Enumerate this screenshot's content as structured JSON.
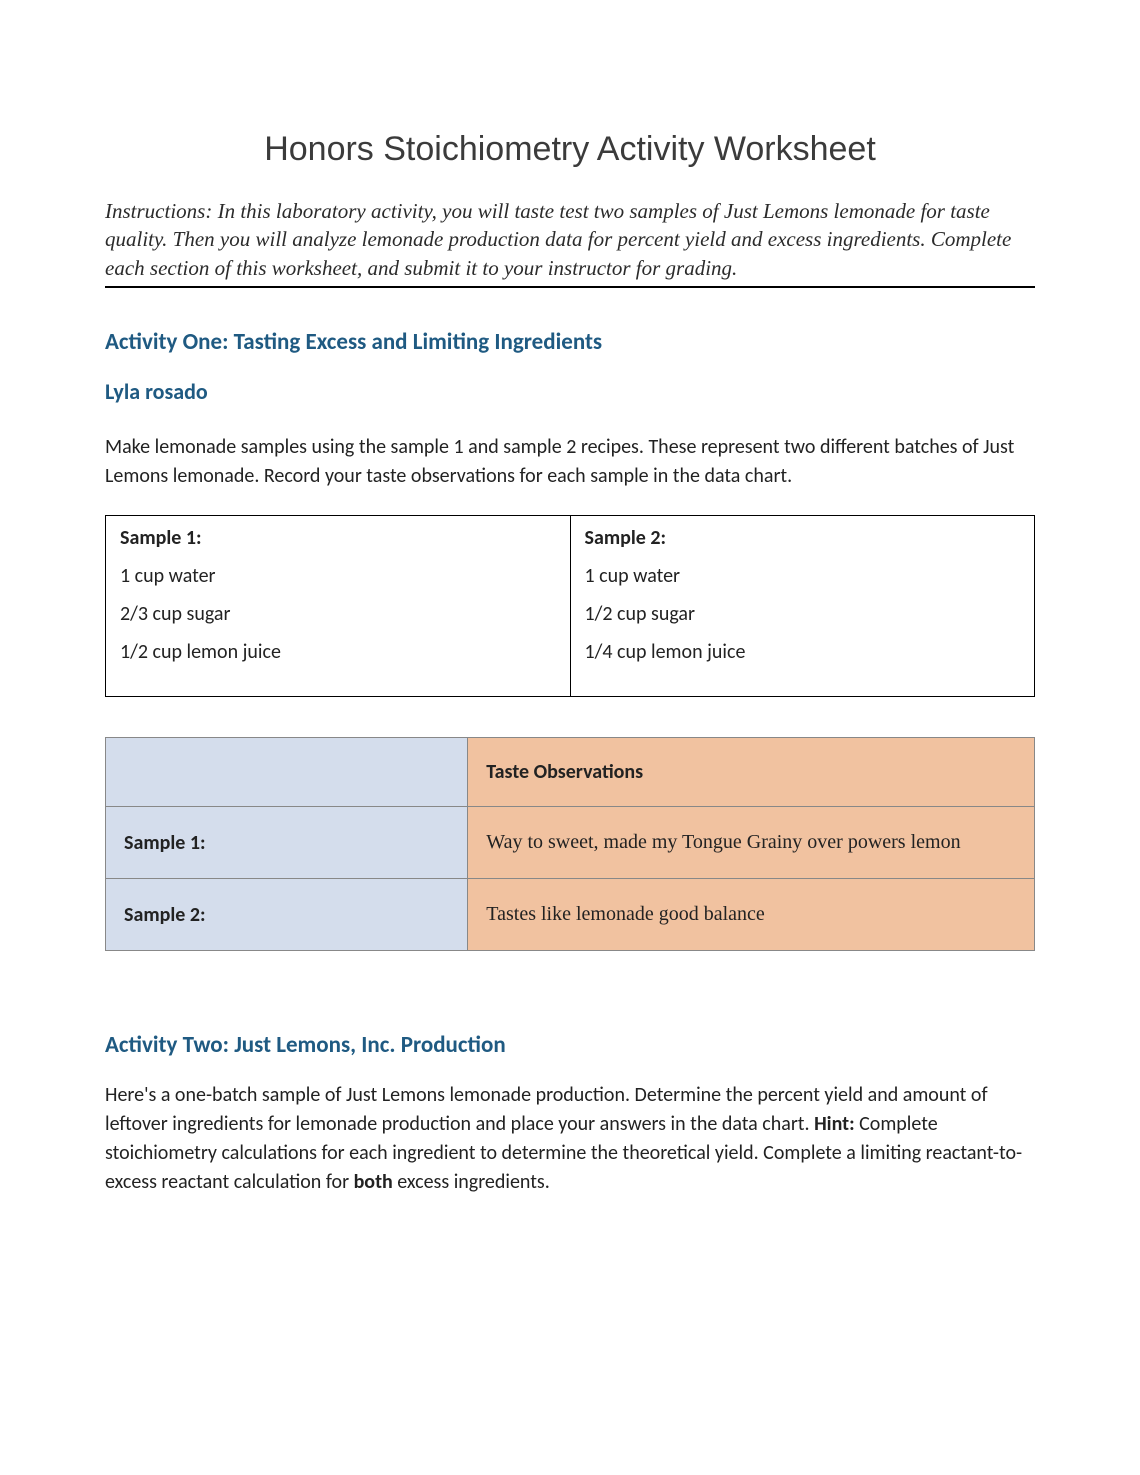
{
  "title": "Honors Stoichiometry Activity Worksheet",
  "instructions": "Instructions: In this laboratory activity, you will taste test two samples of Just Lemons lemonade for taste quality. Then you will analyze lemonade production data for percent yield and excess ingredients. Complete each section of this worksheet, and submit it to your instructor for grading.",
  "activity1": {
    "heading": "Activity One: Tasting Excess and Limiting Ingredients",
    "student": "Lyla rosado",
    "intro": "Make lemonade samples using the sample 1 and sample 2 recipes. These represent two different batches of Just Lemons lemonade. Record your taste observations for each sample in the data chart.",
    "recipes": {
      "sample1": {
        "label": "Sample 1:",
        "lines": [
          "1 cup water",
          "2/3 cup sugar",
          "1/2 cup lemon juice"
        ]
      },
      "sample2": {
        "label": "Sample 2:",
        "lines": [
          "1 cup water",
          "1/2 cup sugar",
          "1/4 cup lemon juice"
        ]
      }
    },
    "observations": {
      "header": "Taste Observations",
      "rows": [
        {
          "label": "Sample 1:",
          "value": "Way to sweet, made my Tongue Grainy over powers lemon"
        },
        {
          "label": "Sample 2:",
          "value": "Tastes like lemonade good balance"
        }
      ]
    }
  },
  "activity2": {
    "heading": "Activity Two: Just Lemons, Inc. Production",
    "intro_a": "Here's a one-batch sample of Just Lemons lemonade production. Determine the percent yield and amount of leftover ingredients for lemonade production and place your answers in the data chart. ",
    "hint_label": "Hint:",
    "intro_b": " Complete stoichiometry calculations for each ingredient to determine the theoretical yield. Complete a limiting reactant-to-excess reactant calculation for ",
    "both_label": "both",
    "intro_c": " excess ingredients."
  },
  "colors": {
    "heading": "#1f5a82",
    "obs_left_bg": "#d4ddec",
    "obs_right_bg": "#f1c2a0"
  }
}
